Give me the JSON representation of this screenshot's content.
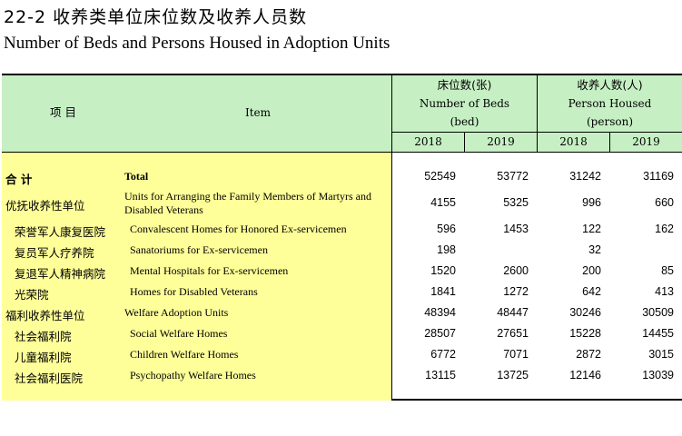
{
  "title": {
    "zh": "22-2  收养类单位床位数及收养人员数",
    "en": "Number of Beds and Persons Housed in Adoption Units"
  },
  "header": {
    "item_zh": "项    目",
    "item_en": "Item",
    "beds": {
      "zh": "床位数(张)",
      "en": "Number of Beds",
      "unit": "(bed)"
    },
    "persons": {
      "zh": "收养人数(人)",
      "en": "Person Housed",
      "unit": "(person)"
    },
    "years": [
      "2018",
      "2019",
      "2018",
      "2019"
    ]
  },
  "rows": [
    {
      "zh": "合  计",
      "en": "Total",
      "level": 0,
      "bold": true,
      "values": [
        "52549",
        "53772",
        "31242",
        "31169"
      ]
    },
    {
      "zh": "优抚收养性单位",
      "en": "Units for Arranging the Family Members of Martyrs and Disabled Veterans",
      "level": 0,
      "bold": false,
      "values": [
        "4155",
        "5325",
        "996",
        "660"
      ]
    },
    {
      "zh": "荣誉军人康复医院",
      "en": "Convalescent Homes for Honored Ex-servicemen",
      "level": 1,
      "bold": false,
      "values": [
        "596",
        "1453",
        "122",
        "162"
      ]
    },
    {
      "zh": "复员军人疗养院",
      "en": "Sanatoriums for Ex-servicemen",
      "level": 1,
      "bold": false,
      "values": [
        "198",
        "",
        "32",
        ""
      ]
    },
    {
      "zh": "复退军人精神病院",
      "en": "Mental Hospitals for Ex-servicemen",
      "level": 1,
      "bold": false,
      "values": [
        "1520",
        "2600",
        "200",
        "85"
      ]
    },
    {
      "zh": "光荣院",
      "en": "Homes for Disabled Veterans",
      "level": 1,
      "bold": false,
      "values": [
        "1841",
        "1272",
        "642",
        "413"
      ]
    },
    {
      "zh": "福利收养性单位",
      "en": "Welfare Adoption Units",
      "level": 0,
      "bold": false,
      "values": [
        "48394",
        "48447",
        "30246",
        "30509"
      ]
    },
    {
      "zh": "社会福利院",
      "en": "Social Welfare Homes",
      "level": 1,
      "bold": false,
      "values": [
        "28507",
        "27651",
        "15228",
        "14455"
      ]
    },
    {
      "zh": "儿童福利院",
      "en": "Children Welfare Homes",
      "level": 1,
      "bold": false,
      "values": [
        "6772",
        "7071",
        "2872",
        "3015"
      ]
    },
    {
      "zh": "社会福利医院",
      "en": "Psychopathy Welfare Homes",
      "level": 1,
      "bold": false,
      "values": [
        "13115",
        "13725",
        "12146",
        "13039"
      ]
    }
  ]
}
